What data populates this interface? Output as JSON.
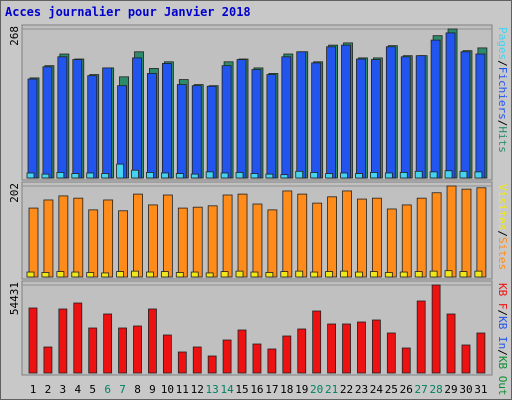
{
  "title": "Acces journalier pour Janvier 2018",
  "legend_separator": "/",
  "chart_data": [
    {
      "type": "bar",
      "ylim": [
        0,
        268
      ],
      "yticks": [
        268
      ],
      "series": [
        {
          "name": "Pages",
          "color": "#44d4f0",
          "values": [
            9,
            7,
            10,
            8,
            9,
            8,
            25,
            14,
            10,
            9,
            8,
            7,
            11,
            9,
            10,
            8,
            7,
            6,
            12,
            10,
            8,
            9,
            8,
            10,
            9,
            10,
            12,
            11,
            13,
            12,
            11
          ]
        },
        {
          "name": "Fichiers",
          "color": "#2255ee",
          "values": [
            178,
            200,
            218,
            213,
            184,
            198,
            166,
            216,
            188,
            206,
            168,
            166,
            165,
            202,
            213,
            195,
            186,
            218,
            227,
            207,
            236,
            239,
            214,
            213,
            236,
            218,
            220,
            248,
            261,
            227,
            223
          ]
        },
        {
          "name": "Hits",
          "color": "#2e8b6a",
          "values": [
            180,
            202,
            223,
            214,
            186,
            198,
            182,
            227,
            197,
            209,
            177,
            168,
            166,
            209,
            214,
            198,
            188,
            223,
            227,
            209,
            239,
            243,
            216,
            216,
            238,
            220,
            220,
            256,
            268,
            229,
            234
          ]
        }
      ]
    },
    {
      "type": "bar",
      "ylim": [
        0,
        202
      ],
      "yticks": [
        202
      ],
      "series": [
        {
          "name": "Visites",
          "color": "#f0e818",
          "values": [
            11,
            10,
            12,
            11,
            10,
            9,
            12,
            13,
            11,
            12,
            10,
            11,
            9,
            12,
            13,
            11,
            10,
            12,
            13,
            11,
            12,
            13,
            11,
            12,
            10,
            11,
            12,
            13,
            14,
            12,
            13
          ]
        },
        {
          "name": "Sites",
          "color": "#ff8c1a",
          "values": [
            153,
            171,
            180,
            175,
            149,
            171,
            147,
            184,
            160,
            182,
            153,
            155,
            158,
            182,
            184,
            162,
            149,
            191,
            184,
            164,
            178,
            191,
            173,
            175,
            151,
            160,
            175,
            187,
            202,
            195,
            198
          ]
        }
      ]
    },
    {
      "type": "bar",
      "ylim": [
        0,
        54431
      ],
      "yticks": [
        54431
      ],
      "categories": [
        "1",
        "2",
        "3",
        "4",
        "5",
        "6",
        "7",
        "8",
        "9",
        "10",
        "11",
        "12",
        "13",
        "14",
        "15",
        "16",
        "17",
        "18",
        "19",
        "20",
        "21",
        "22",
        "23",
        "24",
        "25",
        "26",
        "27",
        "28",
        "29",
        "30",
        "31"
      ],
      "category_colors": [
        "#000000",
        "#000000",
        "#000000",
        "#000000",
        "#000000",
        "#008060",
        "#008060",
        "#000000",
        "#000000",
        "#000000",
        "#000000",
        "#000000",
        "#008060",
        "#008060",
        "#000000",
        "#000000",
        "#000000",
        "#000000",
        "#000000",
        "#008060",
        "#008060",
        "#000000",
        "#000000",
        "#000000",
        "#000000",
        "#000000",
        "#008060",
        "#008060",
        "#000000",
        "#000000",
        "#000000"
      ],
      "series": [
        {
          "name": "KB F",
          "color": "#ee1111",
          "values": [
            40203,
            16081,
            39584,
            43295,
            27833,
            36492,
            27833,
            29070,
            39584,
            23503,
            12989,
            16081,
            10515,
            20411,
            26596,
            17937,
            14844,
            22885,
            27214,
            38347,
            30307,
            30307,
            31544,
            32781,
            24740,
            15463,
            44532,
            54431,
            36492,
            17318,
            24740
          ]
        },
        {
          "name": "KB In",
          "color": "#2255ee"
        },
        {
          "name": "KB Out",
          "color": "#109030"
        }
      ]
    }
  ]
}
